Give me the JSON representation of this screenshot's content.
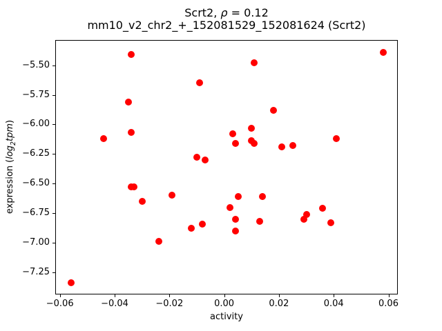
{
  "chart_data": {
    "type": "scatter",
    "title": {
      "prefix": "Scrt2, ",
      "rho": "ρ",
      "suffix": " = 0.12"
    },
    "subtitle": "mm10_v2_chr2_+_152081529_152081624 (Scrt2)",
    "xlabel": "activity",
    "ylabel": {
      "prefix": "expression (",
      "log": "log",
      "sub": "2",
      "tpm": "tpm",
      "suffix": ")"
    },
    "marker_color": "#ff0000",
    "axes_color": "#000000",
    "background_color": "#ffffff",
    "grid": false,
    "legend": null,
    "xlim": [
      -0.0617,
      0.0634
    ],
    "ylim": [
      -7.438,
      -5.286
    ],
    "xticks": {
      "values": [
        -0.06,
        -0.04,
        -0.02,
        0.0,
        0.02,
        0.04,
        0.06
      ],
      "labels": [
        "−0.06",
        "−0.04",
        "−0.02",
        "0.00",
        "0.02",
        "0.04",
        "0.06"
      ]
    },
    "yticks": {
      "values": [
        -5.5,
        -5.75,
        -6.0,
        -6.25,
        -6.5,
        -6.75,
        -7.0,
        -7.25
      ],
      "labels": [
        "−5.50",
        "−5.75",
        "−6.00",
        "−6.25",
        "−6.50",
        "−6.75",
        "−7.00",
        "−7.25"
      ]
    },
    "points": [
      [
        -0.034,
        -5.41
      ],
      [
        -0.009,
        -5.65
      ],
      [
        -0.035,
        -5.81
      ],
      [
        -0.034,
        -6.07
      ],
      [
        -0.044,
        -6.12
      ],
      [
        -0.01,
        -6.28
      ],
      [
        -0.007,
        -6.3
      ],
      [
        0.058,
        -5.39
      ],
      [
        0.011,
        -5.48
      ],
      [
        0.018,
        -5.88
      ],
      [
        0.01,
        -6.03
      ],
      [
        0.003,
        -6.08
      ],
      [
        0.004,
        -6.16
      ],
      [
        0.01,
        -6.14
      ],
      [
        0.011,
        -6.16
      ],
      [
        0.021,
        -6.19
      ],
      [
        0.025,
        -6.18
      ],
      [
        0.041,
        -6.12
      ],
      [
        -0.034,
        -6.53
      ],
      [
        -0.033,
        -6.53
      ],
      [
        -0.03,
        -6.65
      ],
      [
        -0.019,
        -6.6
      ],
      [
        -0.012,
        -6.88
      ],
      [
        -0.008,
        -6.84
      ],
      [
        -0.024,
        -6.99
      ],
      [
        -0.056,
        -7.34
      ],
      [
        0.005,
        -6.61
      ],
      [
        0.014,
        -6.61
      ],
      [
        0.002,
        -6.7
      ],
      [
        0.004,
        -6.8
      ],
      [
        0.004,
        -6.9
      ],
      [
        0.013,
        -6.82
      ],
      [
        0.029,
        -6.8
      ],
      [
        0.03,
        -6.76
      ],
      [
        0.036,
        -6.71
      ],
      [
        0.039,
        -6.83
      ]
    ]
  }
}
